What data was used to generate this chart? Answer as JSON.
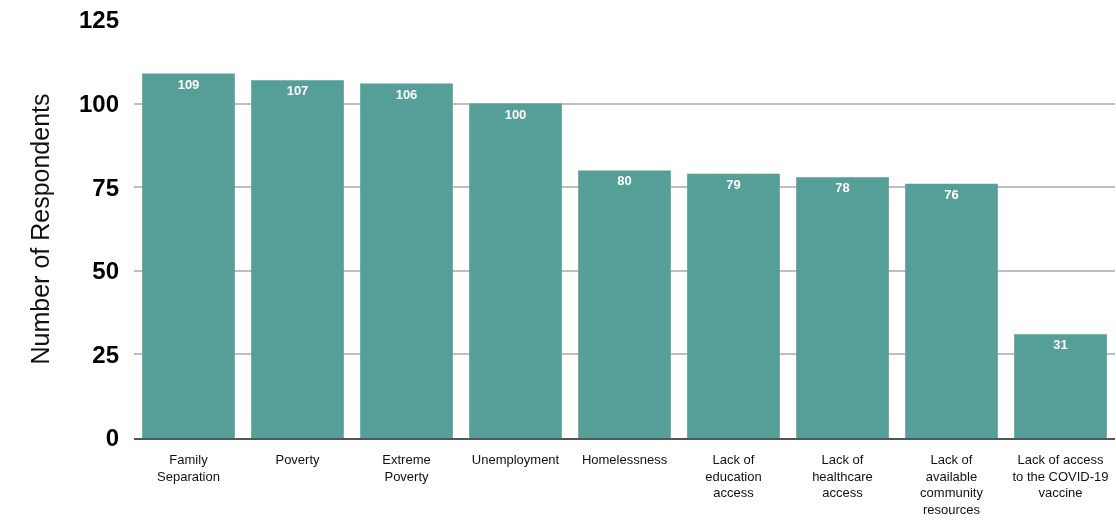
{
  "chart_data": {
    "type": "bar",
    "ylabel": "Number of Respondents",
    "categories": [
      "Family\nSeparation",
      "Poverty",
      "Extreme\nPoverty",
      "Unemployment",
      "Homelessness",
      "Lack of\neducation\naccess",
      "Lack of\nhealthcare\naccess",
      "Lack of\navailable\ncommunity\nresources",
      "Lack of access\nto the COVID-19\nvaccine"
    ],
    "values": [
      109,
      107,
      106,
      100,
      80,
      79,
      78,
      76,
      31
    ],
    "color": "#569e98",
    "ylim": [
      0,
      125
    ],
    "yticks": [
      0,
      25,
      50,
      75,
      100,
      125
    ],
    "grid": "y",
    "data_labels": true
  }
}
